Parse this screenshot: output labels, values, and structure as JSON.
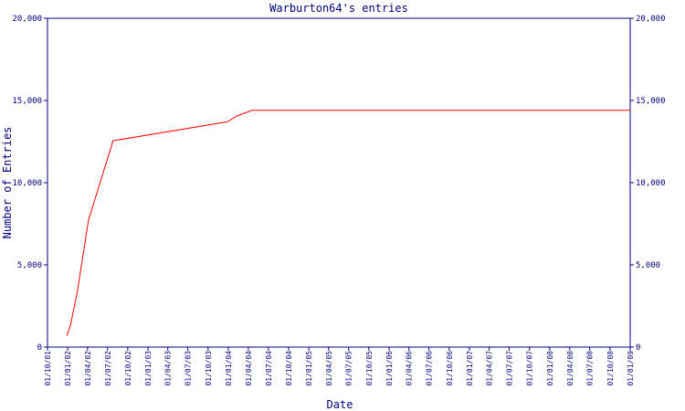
{
  "chart_data": {
    "type": "line",
    "title": "Warburton64's entries",
    "x_label": "Date",
    "y_label": "Number of Entries",
    "x": [
      "28/12/01",
      "13/01/02",
      "14/02/02",
      "05/04/02",
      "26/07/02",
      "28/12/03",
      "08/02/04",
      "18/04/04",
      "01/01/09"
    ],
    "series": [
      {
        "name": "Entries",
        "color": "#ff0000",
        "values": [
          700,
          1300,
          3400,
          7700,
          12550,
          13700,
          14050,
          14400,
          14400
        ]
      }
    ],
    "xlim": [
      "01/10/01",
      "01/01/09"
    ],
    "xticks": [
      "01/10/01",
      "01/01/02",
      "01/04/02",
      "01/07/02",
      "01/10/02",
      "01/01/03",
      "01/04/03",
      "01/07/03",
      "01/10/03",
      "01/01/04",
      "01/04/04",
      "01/07/04",
      "01/10/04",
      "01/01/05",
      "01/04/05",
      "01/07/05",
      "01/10/05",
      "01/01/06",
      "01/04/06",
      "01/07/06",
      "01/10/06",
      "01/01/07",
      "01/04/07",
      "01/07/07",
      "01/10/07",
      "01/01/08",
      "01/04/08",
      "01/07/08",
      "01/10/08",
      "01/01/09"
    ],
    "ylim": [
      0,
      20000
    ],
    "yticks": [
      0,
      {
        "value": 5000,
        "label": "5,000"
      },
      {
        "value": 10000,
        "label": "10,000"
      },
      {
        "value": 15000,
        "label": "15,000"
      },
      {
        "value": 20000,
        "label": "20,000"
      }
    ],
    "y2lim": [
      0,
      20000
    ],
    "y2ticks": [
      0,
      {
        "value": 5000,
        "label": "5,000"
      },
      {
        "value": 10000,
        "label": "10,000"
      },
      {
        "value": 15000,
        "label": "15,000"
      },
      {
        "value": 20000,
        "label": "20,000"
      }
    ]
  }
}
